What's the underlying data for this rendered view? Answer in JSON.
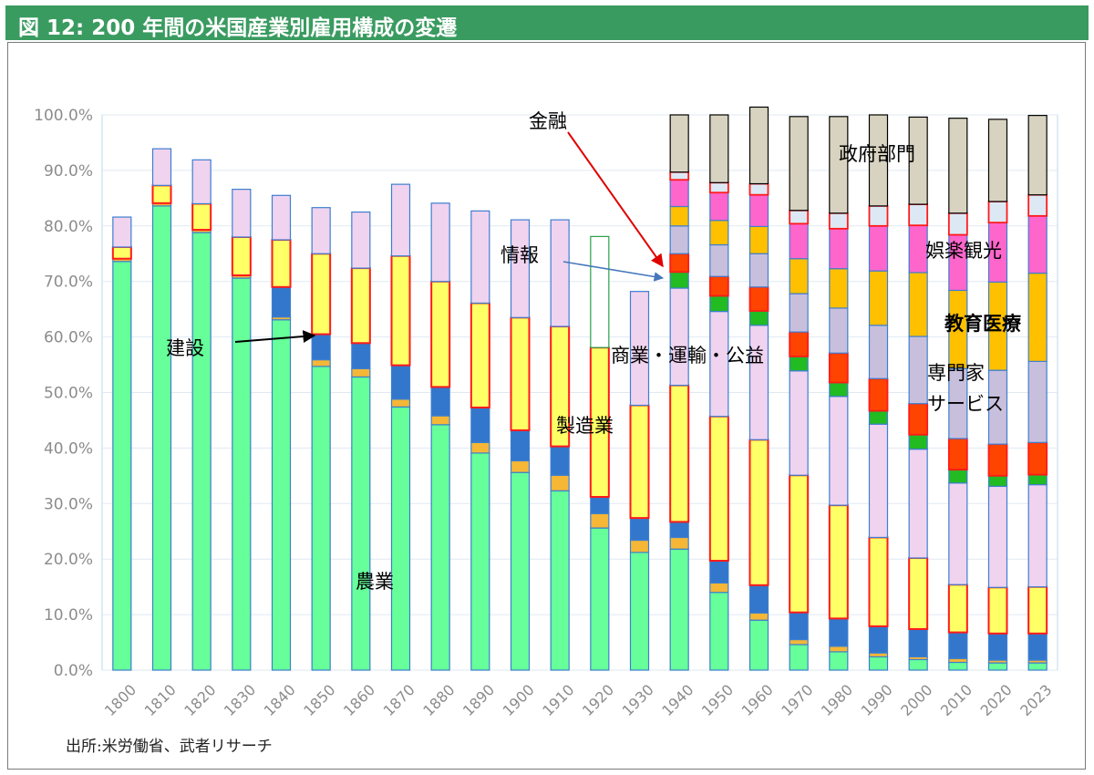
{
  "header": {
    "title": "図 12: 200 年間の米国産業別雇用構成の変遷"
  },
  "source_note": "出所:米労働省、武者リサーチ",
  "colors": {
    "agriculture": "#66ff99",
    "construction": "#f5b735",
    "manufacturing_transport": "#3377cc",
    "manufacturing": "#ffff66",
    "commerce_utilities": "#f0d3ef",
    "information": "#22bb22",
    "finance": "#ff4400",
    "professional_services": "#c8bfdd",
    "education_health": "#ffc000",
    "leisure_tourism": "#ff66cc",
    "other": "#dde8f5",
    "government": "#d8d3c0"
  },
  "chart_data": {
    "type": "bar",
    "stacked": true,
    "categories": [
      "1800",
      "1810",
      "1820",
      "1830",
      "1840",
      "1850",
      "1860",
      "1870",
      "1880",
      "1890",
      "1900",
      "1910",
      "1920",
      "1930",
      "1940",
      "1950",
      "1960",
      "1970",
      "1980",
      "1990",
      "2000",
      "2010",
      "2020",
      "2023"
    ],
    "series": [
      {
        "key": "agriculture",
        "values": [
          73.6,
          83.6,
          78.8,
          70.6,
          63.1,
          54.7,
          52.8,
          47.4,
          44.2,
          39.1,
          35.6,
          32.3,
          25.6,
          21.2,
          21.8,
          14.0,
          9.0,
          4.6,
          3.3,
          2.4,
          1.9,
          1.4,
          1.3,
          1.3
        ]
      },
      {
        "key": "construction",
        "values": [
          0.5,
          0.5,
          0.5,
          0.5,
          0.5,
          1.2,
          1.5,
          1.4,
          1.6,
          1.9,
          2.1,
          2.8,
          2.6,
          2.2,
          2.1,
          1.7,
          1.3,
          0.9,
          1.0,
          0.7,
          0.5,
          0.7,
          0.5,
          0.5
        ]
      },
      {
        "key": "manufacturing_transport",
        "values": [
          0,
          0,
          0,
          0,
          5.4,
          4.6,
          4.6,
          6.1,
          5.2,
          6.3,
          5.5,
          5.2,
          3.0,
          4.0,
          2.8,
          4.0,
          5.0,
          4.9,
          5.0,
          4.8,
          5.0,
          4.7,
          4.8,
          4.8
        ]
      },
      {
        "key": "manufacturing",
        "values": [
          2.1,
          3.2,
          4.7,
          6.9,
          8.5,
          14.5,
          13.5,
          19.7,
          19.0,
          18.8,
          20.3,
          21.6,
          26.9,
          20.3,
          24.6,
          26.0,
          26.2,
          24.7,
          20.4,
          16.0,
          12.8,
          8.6,
          8.3,
          8.4
        ]
      },
      {
        "key": "commerce_utilities",
        "values": [
          5.4,
          6.6,
          7.9,
          8.6,
          8.0,
          8.3,
          10.1,
          12.9,
          14.1,
          16.6,
          17.6,
          19.2,
          0,
          20.5,
          17.5,
          18.9,
          20.6,
          18.8,
          19.6,
          20.4,
          19.6,
          18.3,
          18.2,
          18.4
        ]
      },
      {
        "key": "information",
        "values": [
          0,
          0,
          0,
          0,
          0,
          0,
          0,
          0,
          0,
          0,
          0,
          0,
          0,
          0,
          2.9,
          2.8,
          2.6,
          2.6,
          2.5,
          2.4,
          2.6,
          2.4,
          1.9,
          1.8
        ]
      },
      {
        "key": "finance",
        "values": [
          0,
          0,
          0,
          0,
          0,
          0,
          0,
          0,
          0,
          0,
          0,
          0,
          0,
          0,
          3.3,
          3.5,
          4.3,
          4.4,
          5.3,
          5.8,
          5.6,
          5.6,
          5.7,
          5.8
        ]
      },
      {
        "key": "professional_services",
        "values": [
          0,
          0,
          0,
          0,
          0,
          0,
          0,
          0,
          0,
          0,
          0,
          0,
          0,
          0,
          5.0,
          5.7,
          6.0,
          6.9,
          8.1,
          9.6,
          12.1,
          12.6,
          13.3,
          14.6
        ]
      },
      {
        "key": "education_health",
        "values": [
          0,
          0,
          0,
          0,
          0,
          0,
          0,
          0,
          0,
          0,
          0,
          0,
          0,
          0,
          3.5,
          4.4,
          4.9,
          6.3,
          7.1,
          9.8,
          11.5,
          14.1,
          15.9,
          15.9
        ]
      },
      {
        "key": "leisure_tourism",
        "values": [
          0,
          0,
          0,
          0,
          0,
          0,
          0,
          0,
          0,
          0,
          0,
          0,
          0,
          0,
          4.8,
          5.0,
          5.7,
          6.3,
          7.2,
          8.1,
          8.5,
          10.0,
          10.7,
          10.3
        ]
      },
      {
        "key": "other",
        "values": [
          0,
          0,
          0,
          0,
          0,
          0,
          0,
          0,
          0,
          0,
          0,
          0,
          0,
          0,
          1.4,
          1.8,
          2.0,
          2.4,
          2.8,
          3.6,
          3.8,
          3.9,
          3.8,
          3.8
        ]
      },
      {
        "key": "government",
        "values": [
          0,
          0,
          0,
          0,
          0,
          0,
          0,
          0,
          0,
          0,
          0,
          0,
          0,
          0,
          10.3,
          12.2,
          13.8,
          16.9,
          17.4,
          16.4,
          15.7,
          17.1,
          14.8,
          14.3
        ]
      },
      {
        "key": "manufacturing_1920_outline",
        "values": [
          0,
          0,
          0,
          0,
          0,
          0,
          0,
          0,
          0,
          0,
          0,
          0,
          20,
          0,
          0,
          0,
          0,
          0,
          0,
          0,
          0,
          0,
          0,
          0
        ]
      }
    ],
    "ylim": [
      0,
      100
    ],
    "yticks": [
      "0.0%",
      "10.0%",
      "20.0%",
      "30.0%",
      "40.0%",
      "50.0%",
      "60.0%",
      "70.0%",
      "80.0%",
      "90.0%",
      "100.0%"
    ],
    "annotations": {
      "finance": "金融",
      "information": "情報",
      "construction": "建設",
      "commerce": "商業・運輸・公益",
      "manufacturing": "製造業",
      "agriculture": "農業",
      "government": "政府部門",
      "leisure": "娯楽観光",
      "education": "教育医療",
      "services_line1": "専門家",
      "services_line2": "サービス"
    }
  }
}
